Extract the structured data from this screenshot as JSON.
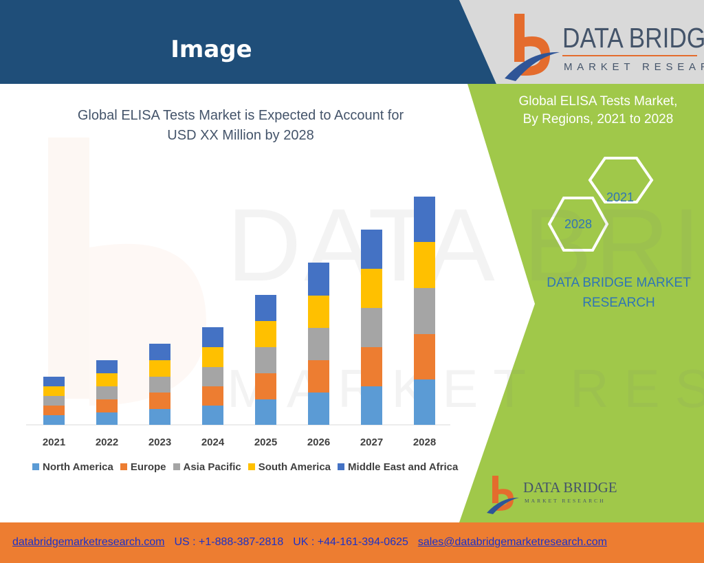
{
  "header": {
    "title": "Image"
  },
  "brand": {
    "name": "DATA BRIDGE",
    "tagline": "MARKET RESEARCH"
  },
  "panel": {
    "title_line1": "Global ELISA Tests Market,",
    "title_line2": "By Regions, 2021 to 2028",
    "hex_start": "2021",
    "hex_end": "2028",
    "company_line1": "DATA BRIDGE MARKET",
    "company_line2": "RESEARCH"
  },
  "chart_title": {
    "line1": "Global ELISA Tests Market is Expected to Account for",
    "line2": "USD XX Million by 2028"
  },
  "footer": {
    "website": "databridgemarketresearch.com",
    "us_phone": "US : +1-888-387-2818",
    "uk_phone": "UK : +44-161-394-0625",
    "email": "sales@databridgemarketresearch.com"
  },
  "colors": {
    "header_blue": "#1f4e79",
    "panel_green": "#a0c84a",
    "footer_orange": "#ed7d31",
    "link_blue": "#1a31c9"
  },
  "chart_data": {
    "type": "bar",
    "stacked": true,
    "categories": [
      "2021",
      "2022",
      "2023",
      "2024",
      "2025",
      "2026",
      "2027",
      "2028"
    ],
    "series": [
      {
        "name": "North America",
        "color": "#5b9bd5",
        "values": [
          14,
          18,
          23,
          28,
          37,
          47,
          56,
          66
        ]
      },
      {
        "name": "Europe",
        "color": "#ed7d31",
        "values": [
          14,
          19,
          24,
          28,
          38,
          47,
          57,
          66
        ]
      },
      {
        "name": "Asia Pacific",
        "color": "#a5a5a5",
        "values": [
          14,
          19,
          23,
          28,
          38,
          47,
          57,
          67
        ]
      },
      {
        "name": "South America",
        "color": "#ffc000",
        "values": [
          14,
          19,
          24,
          29,
          38,
          47,
          57,
          67
        ]
      },
      {
        "name": "Middle East and Africa",
        "color": "#4472c4",
        "values": [
          14,
          19,
          24,
          29,
          38,
          48,
          57,
          66
        ]
      }
    ],
    "grid": false,
    "legend": "bottom",
    "ylim": [
      0,
      332
    ]
  }
}
